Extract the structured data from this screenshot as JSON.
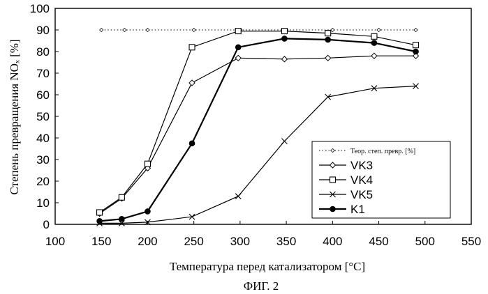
{
  "chart_data": {
    "type": "line",
    "xlabel": "Температура перед катализатором [°C]",
    "ylabel": "Степень превращения NOₓ [%]",
    "xlim": [
      100,
      550
    ],
    "ylim": [
      0,
      100
    ],
    "xticks": [
      "100",
      "150",
      "200",
      "250",
      "300",
      "350",
      "400",
      "450",
      "500",
      "550"
    ],
    "yticks": [
      "0",
      "10",
      "20",
      "30",
      "40",
      "50",
      "60",
      "70",
      "80",
      "90",
      "100"
    ],
    "grid": false,
    "legend_position": "bottom-right",
    "series": [
      {
        "name": "Теор. степ. превр. [%]",
        "marker": "small-diamond",
        "line": "dotted",
        "x": [
          150,
          175,
          200,
          250,
          300,
          350,
          400,
          450,
          490
        ],
        "y": [
          90,
          90,
          90,
          90,
          90,
          90,
          90,
          90,
          90
        ]
      },
      {
        "name": "VK3",
        "marker": "diamond",
        "line": "solid",
        "x": [
          148,
          172,
          200,
          248,
          298,
          348,
          395,
          445,
          490
        ],
        "y": [
          5,
          12,
          26,
          65.5,
          77,
          76.5,
          77,
          78,
          78
        ]
      },
      {
        "name": "VK4",
        "marker": "square",
        "line": "solid",
        "x": [
          148,
          172,
          200,
          248,
          298,
          348,
          395,
          445,
          490
        ],
        "y": [
          5.5,
          12.5,
          28,
          82,
          89.5,
          89.5,
          88.5,
          87,
          83
        ]
      },
      {
        "name": "VK5",
        "marker": "x",
        "line": "solid",
        "x": [
          148,
          172,
          200,
          248,
          298,
          348,
          395,
          445,
          490
        ],
        "y": [
          0.5,
          0.5,
          1,
          3.5,
          13,
          38.5,
          59,
          63,
          64
        ]
      },
      {
        "name": "K1",
        "marker": "filled-circle",
        "line": "solid-bold",
        "x": [
          148,
          172,
          200,
          248,
          298,
          348,
          395,
          445,
          490
        ],
        "y": [
          1.5,
          2.5,
          6,
          37.5,
          82,
          86,
          85.5,
          84,
          80
        ]
      }
    ]
  },
  "figure_caption": "ФИГ. 2"
}
